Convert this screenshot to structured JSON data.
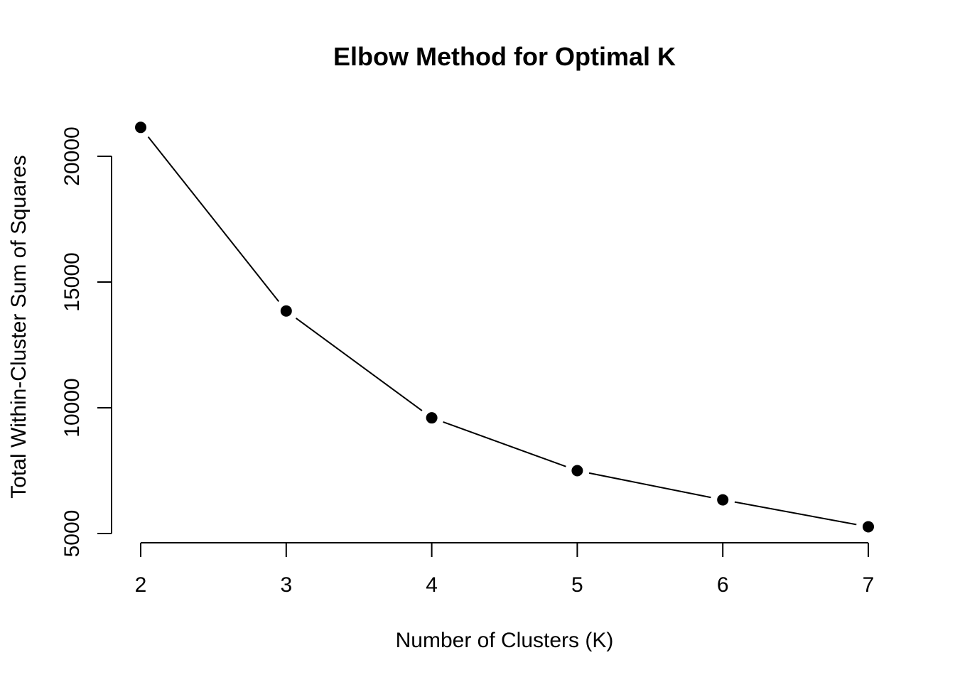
{
  "chart_data": {
    "type": "line",
    "title": "Elbow Method for Optimal K",
    "xlabel": "Number of Clusters (K)",
    "ylabel": "Total Within-Cluster Sum of Squares",
    "x": [
      2,
      3,
      4,
      5,
      6,
      7
    ],
    "values": [
      21150,
      13850,
      9600,
      7500,
      6340,
      5270
    ],
    "x_ticks": [
      "2",
      "3",
      "4",
      "5",
      "6",
      "7"
    ],
    "y_ticks": [
      5000,
      10000,
      15000,
      20000
    ],
    "y_tick_labels": [
      "5000",
      "10000",
      "15000",
      "20000"
    ],
    "xlim": [
      2,
      7
    ],
    "ylim": [
      5000,
      20000
    ],
    "grid": false,
    "legend": "none",
    "colors": {
      "line": "#000000",
      "points": "#000000",
      "background": "#ffffff"
    }
  }
}
